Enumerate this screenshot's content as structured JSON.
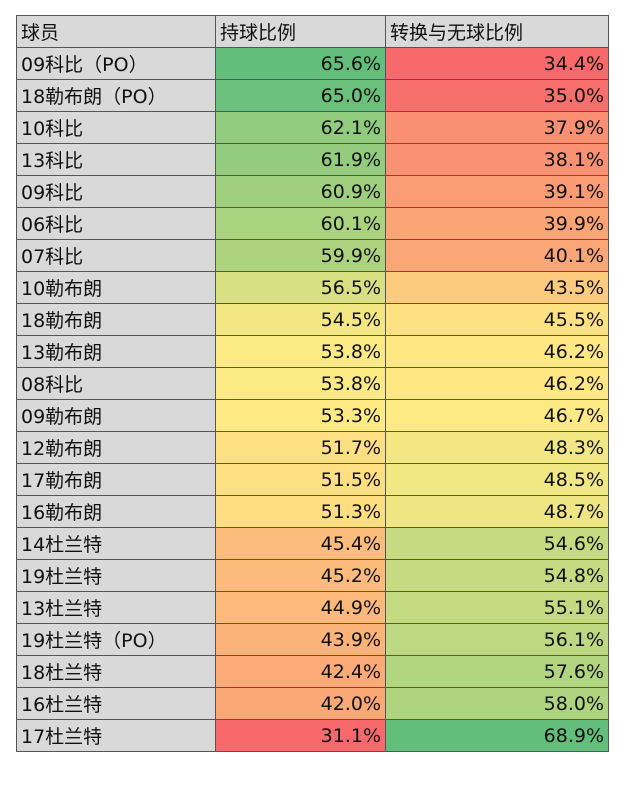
{
  "table": {
    "header": [
      "球员",
      "持球比例",
      "转换与无球比例"
    ],
    "rows": [
      [
        "09科比（PO）",
        "65.6%",
        "34.4%"
      ],
      [
        "18勒布朗（PO）",
        "65.0%",
        "35.0%"
      ],
      [
        "10科比",
        "62.1%",
        "37.9%"
      ],
      [
        "13科比",
        "61.9%",
        "38.1%"
      ],
      [
        "09科比",
        "60.9%",
        "39.1%"
      ],
      [
        "06科比",
        "60.1%",
        "39.9%"
      ],
      [
        "07科比",
        "59.9%",
        "40.1%"
      ],
      [
        "10勒布朗",
        "56.5%",
        "43.5%"
      ],
      [
        "18勒布朗",
        "54.5%",
        "45.5%"
      ],
      [
        "13勒布朗",
        "53.8%",
        "46.2%"
      ],
      [
        "08科比",
        "53.8%",
        "46.2%"
      ],
      [
        "09勒布朗",
        "53.3%",
        "46.7%"
      ],
      [
        "12勒布朗",
        "51.7%",
        "48.3%"
      ],
      [
        "17勒布朗",
        "51.5%",
        "48.5%"
      ],
      [
        "16勒布朗",
        "51.3%",
        "48.7%"
      ],
      [
        "14杜兰特",
        "45.4%",
        "54.6%"
      ],
      [
        "19杜兰特",
        "45.2%",
        "54.8%"
      ],
      [
        "13杜兰特",
        "44.9%",
        "55.1%"
      ],
      [
        "19杜兰特（PO）",
        "43.9%",
        "56.1%"
      ],
      [
        "18杜兰特",
        "42.4%",
        "57.6%"
      ],
      [
        "16杜兰特",
        "42.0%",
        "58.0%"
      ],
      [
        "17杜兰特",
        "31.1%",
        "68.9%"
      ]
    ]
  }
}
